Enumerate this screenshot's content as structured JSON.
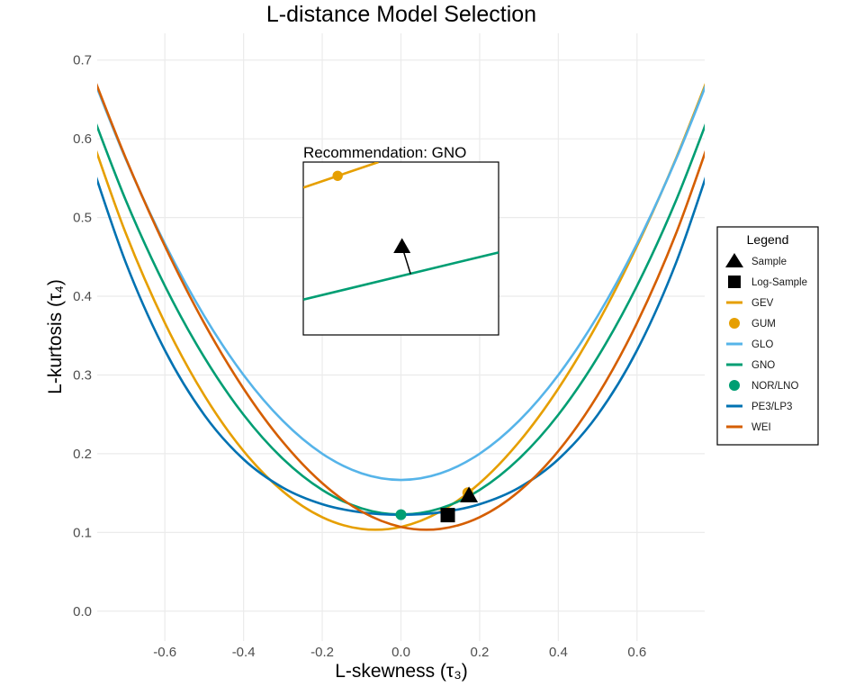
{
  "chart_data": {
    "type": "line",
    "title": "L-distance Model Selection",
    "xlabel": "L-skewness (τ₃)",
    "ylabel": "L-kurtosis (τ₄)",
    "xlim": [
      -0.772,
      0.772
    ],
    "ylim": [
      -0.038,
      0.734
    ],
    "xticks": [
      -0.6,
      -0.4,
      -0.2,
      0.0,
      0.2,
      0.4,
      0.6
    ],
    "xtick_labels": [
      "-0.6",
      "-0.4",
      "-0.2",
      "0.0",
      "0.2",
      "0.4",
      "0.6"
    ],
    "yticks": [
      0.0,
      0.1,
      0.2,
      0.3,
      0.4,
      0.5,
      0.6,
      0.7
    ],
    "ytick_labels": [
      "0.0",
      "0.1",
      "0.2",
      "0.3",
      "0.4",
      "0.5",
      "0.6",
      "0.7"
    ],
    "grid": true,
    "x": [
      -0.8,
      -0.7,
      -0.6,
      -0.5,
      -0.4,
      -0.3,
      -0.2,
      -0.1,
      0.0,
      0.1,
      0.2,
      0.3,
      0.4,
      0.5,
      0.6,
      0.7,
      0.8
    ],
    "series": [
      {
        "name": "GEV",
        "color": "#E69F00",
        "values": [
          0.6214,
          0.4808,
          0.3661,
          0.2743,
          0.2034,
          0.1521,
          0.1193,
          0.1045,
          0.107,
          0.1265,
          0.1626,
          0.2148,
          0.2827,
          0.3658,
          0.4638,
          0.5762,
          0.7029
        ]
      },
      {
        "name": "GLO",
        "color": "#56B4E9",
        "values": [
          0.7,
          0.575,
          0.4667,
          0.375,
          0.3,
          0.2417,
          0.2,
          0.175,
          0.1667,
          0.175,
          0.2,
          0.2417,
          0.3,
          0.375,
          0.4667,
          0.575,
          0.7
        ]
      },
      {
        "name": "GNO",
        "color": "#009E73",
        "values": [
          0.6526,
          0.5227,
          0.4133,
          0.3226,
          0.2495,
          0.1935,
          0.154,
          0.1306,
          0.1228,
          0.1306,
          0.154,
          0.1935,
          0.2495,
          0.3226,
          0.4133,
          0.5227,
          0.6526
        ]
      },
      {
        "name": "PE3/LP3",
        "color": "#0072B2",
        "values": [
          0.5894,
          0.4436,
          0.3314,
          0.2494,
          0.1929,
          0.1569,
          0.1359,
          0.1255,
          0.1224,
          0.1255,
          0.1359,
          0.1569,
          0.1929,
          0.2494,
          0.3314,
          0.4436,
          0.5894
        ]
      },
      {
        "name": "WEI",
        "color": "#D55E00",
        "values": [
          0.7029,
          0.5762,
          0.4638,
          0.3658,
          0.2827,
          0.2148,
          0.1626,
          0.1265,
          0.107,
          0.1045,
          0.1193,
          0.1521,
          0.2034,
          0.2743,
          0.3661,
          0.4808,
          0.6214
        ]
      }
    ],
    "points": [
      {
        "name": "GUM",
        "shape": "circle",
        "color": "#E69F00",
        "x": 0.1699,
        "y": 0.1504
      },
      {
        "name": "NOR/LNO",
        "shape": "circle",
        "color": "#009E73",
        "x": 0.0,
        "y": 0.1226
      },
      {
        "name": "Log-Sample",
        "shape": "square",
        "color": "#000000",
        "x": 0.119,
        "y": 0.122
      },
      {
        "name": "Sample",
        "shape": "triangle",
        "color": "#000000",
        "x": 0.1729,
        "y": 0.1468
      }
    ],
    "inset": {
      "title": "Recommendation: GNO",
      "xlim": [
        0.1683,
        0.1774
      ],
      "ylim": [
        0.1423,
        0.1511
      ],
      "lines": [
        {
          "name": "GEV",
          "color": "#E69F00",
          "x": [
            0.1683,
            0.1718
          ],
          "y": [
            0.1498,
            0.1511
          ]
        },
        {
          "name": "GNO",
          "color": "#009E73",
          "x": [
            0.1683,
            0.1774
          ],
          "y": [
            0.1441,
            0.1465
          ]
        }
      ],
      "points": [
        {
          "name": "GUM",
          "shape": "circle",
          "color": "#E69F00",
          "x": 0.1699,
          "y": 0.1504
        },
        {
          "name": "Sample",
          "shape": "triangle",
          "color": "#000000",
          "x": 0.1729,
          "y": 0.1468
        }
      ],
      "arrow": {
        "from": [
          0.1729,
          0.1468
        ],
        "to": [
          0.1733,
          0.1454
        ]
      }
    },
    "legend": {
      "title": "Legend",
      "placement": "right",
      "entries": [
        {
          "label": "Sample",
          "kind": "triangle",
          "color": "#000000"
        },
        {
          "label": "Log-Sample",
          "kind": "square",
          "color": "#000000"
        },
        {
          "label": "GEV",
          "kind": "line",
          "color": "#E69F00"
        },
        {
          "label": "GUM",
          "kind": "circle",
          "color": "#E69F00"
        },
        {
          "label": "GLO",
          "kind": "line",
          "color": "#56B4E9"
        },
        {
          "label": "GNO",
          "kind": "line",
          "color": "#009E73"
        },
        {
          "label": "NOR/LNO",
          "kind": "circle",
          "color": "#009E73"
        },
        {
          "label": "PE3/LP3",
          "kind": "line",
          "color": "#0072B2"
        },
        {
          "label": "WEI",
          "kind": "line",
          "color": "#D55E00"
        }
      ]
    }
  }
}
